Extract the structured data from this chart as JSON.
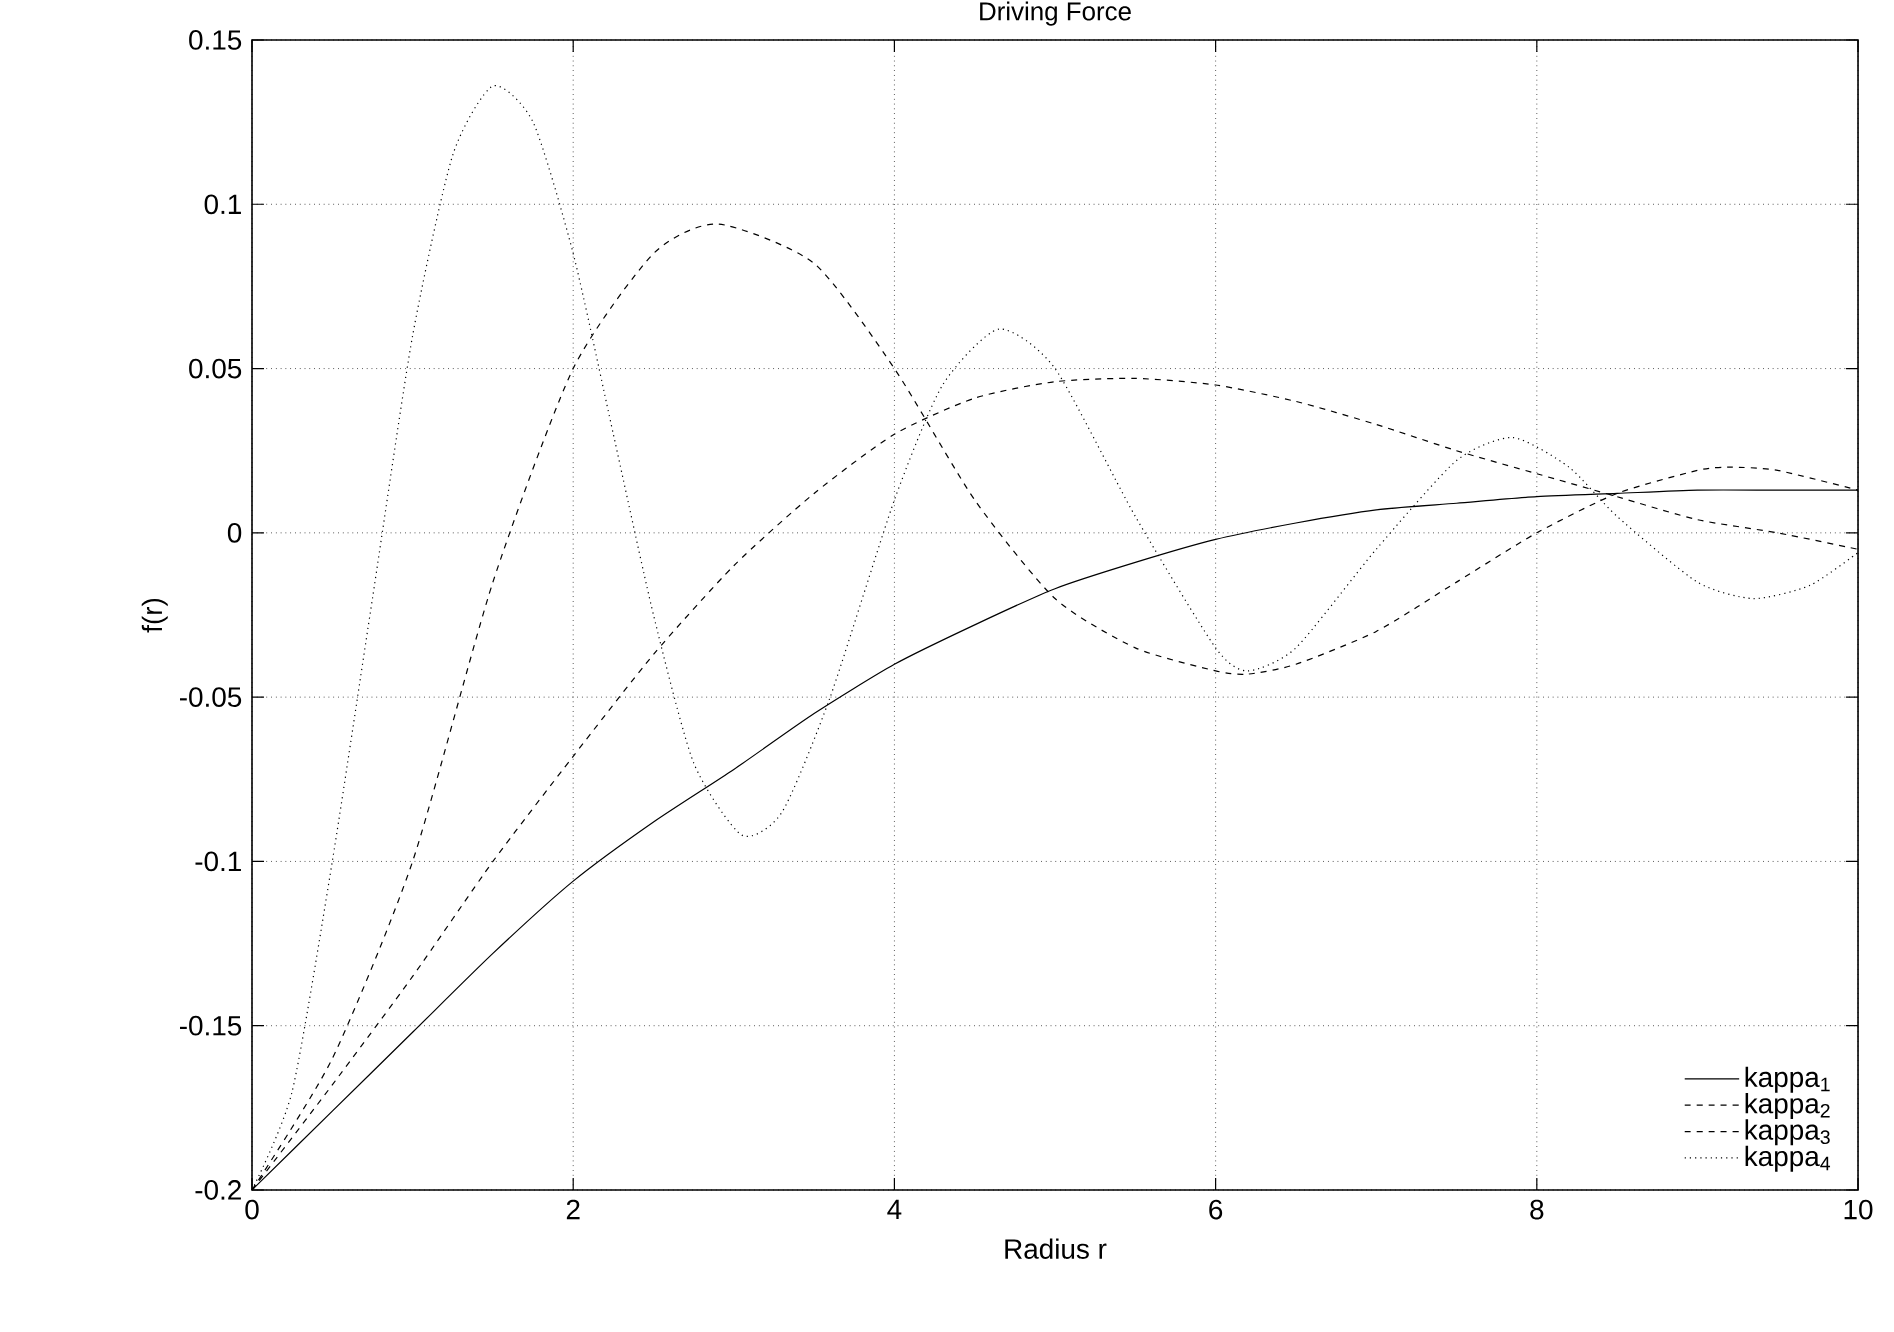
{
  "chart_data": {
    "type": "line",
    "title": "Driving Force",
    "xlabel": "Radius r",
    "ylabel": "f(r)",
    "xlim": [
      0,
      10
    ],
    "ylim": [
      -0.2,
      0.15
    ],
    "xticks": [
      0,
      2,
      4,
      6,
      8,
      10
    ],
    "yticks": [
      -0.2,
      -0.15,
      -0.1,
      -0.05,
      0,
      0.05,
      0.1,
      0.15
    ],
    "grid": true,
    "legend": "bottom right",
    "marker": "none",
    "series": [
      {
        "name": "kappa$_{1}$",
        "color": "#000000",
        "line_style": "solid",
        "x": [
          0,
          0.5,
          1,
          1.5,
          2,
          2.5,
          3,
          3.5,
          4,
          4.5,
          5,
          5.5,
          6,
          6.5,
          7,
          7.5,
          8,
          8.5,
          9,
          9.5,
          10
        ],
        "values": [
          -0.2,
          -0.176,
          -0.152,
          -0.128,
          -0.106,
          -0.088,
          -0.072,
          -0.055,
          -0.04,
          -0.028,
          -0.017,
          -0.009,
          -0.002,
          0.003,
          0.007,
          0.009,
          0.011,
          0.012,
          0.013,
          0.013,
          0.013
        ]
      },
      {
        "name": "kappa$_{2}$",
        "color": "#000000",
        "line_style": "dashed",
        "x": [
          0,
          0.5,
          1,
          1.5,
          2,
          2.5,
          3,
          3.5,
          4,
          4.5,
          5,
          5.5,
          6,
          6.5,
          7,
          7.5,
          8,
          8.5,
          9,
          9.5,
          10
        ],
        "values": [
          -0.2,
          -0.168,
          -0.135,
          -0.1,
          -0.068,
          -0.037,
          -0.01,
          0.012,
          0.03,
          0.041,
          0.046,
          0.047,
          0.045,
          0.04,
          0.033,
          0.025,
          0.018,
          0.011,
          0.004,
          0.0,
          -0.005
        ]
      },
      {
        "name": "kappa$_{3}$",
        "color": "#000000",
        "line_style": "dashed",
        "x": [
          0,
          0.5,
          1,
          1.5,
          2,
          2.5,
          2.9,
          3.5,
          4,
          4.5,
          5,
          5.5,
          6,
          6.2,
          6.5,
          7,
          7.5,
          8,
          8.5,
          9,
          9.2,
          9.5,
          10
        ],
        "values": [
          -0.2,
          -0.16,
          -0.1,
          -0.015,
          0.05,
          0.085,
          0.094,
          0.082,
          0.05,
          0.01,
          -0.02,
          -0.035,
          -0.042,
          -0.043,
          -0.04,
          -0.03,
          -0.015,
          0.0,
          0.012,
          0.019,
          0.02,
          0.019,
          0.013
        ]
      },
      {
        "name": "kappa$_{4}$",
        "color": "#000000",
        "line_style": "dotted",
        "x": [
          0,
          0.25,
          0.5,
          0.75,
          1,
          1.25,
          1.5,
          1.75,
          2,
          2.25,
          2.5,
          2.75,
          3.05,
          3.3,
          3.6,
          4,
          4.3,
          4.65,
          5,
          5.5,
          6,
          6.2,
          6.5,
          7,
          7.5,
          7.85,
          8.2,
          8.5,
          9,
          9.35,
          9.7,
          10
        ],
        "values": [
          -0.2,
          -0.17,
          -0.1,
          -0.02,
          0.06,
          0.115,
          0.136,
          0.125,
          0.085,
          0.03,
          -0.025,
          -0.07,
          -0.092,
          -0.085,
          -0.05,
          0.01,
          0.045,
          0.062,
          0.05,
          0.005,
          -0.035,
          -0.042,
          -0.035,
          -0.005,
          0.022,
          0.029,
          0.02,
          0.005,
          -0.015,
          -0.02,
          -0.016,
          -0.006
        ]
      }
    ]
  }
}
